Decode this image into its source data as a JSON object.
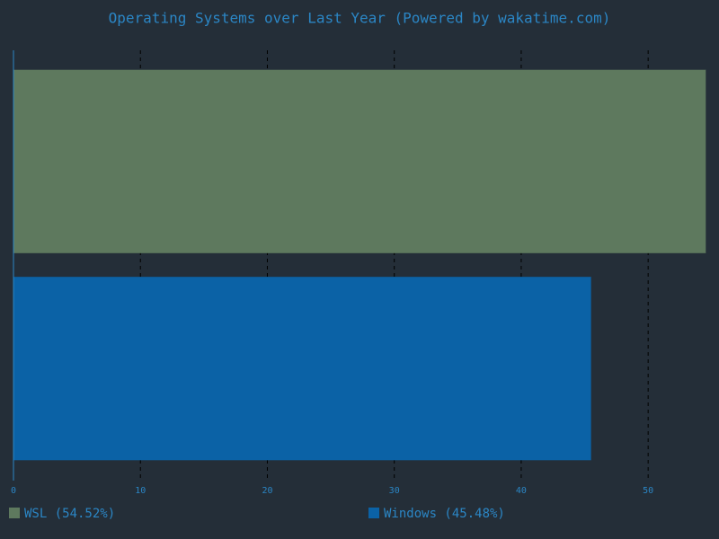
{
  "chart_data": {
    "type": "hbar",
    "title": "Operating Systems over Last Year (Powered by wakatime.com)",
    "series": [
      {
        "name": "WSL (54.52%)",
        "color": "#5e795e",
        "values": [
          54.52
        ]
      },
      {
        "name": "Windows (45.48%)",
        "color": "#0b62a6",
        "values": [
          45.48
        ]
      }
    ],
    "xlim": [
      0,
      54.52
    ],
    "xticks": [
      0,
      10,
      20,
      30,
      40,
      50
    ],
    "grid": true
  }
}
